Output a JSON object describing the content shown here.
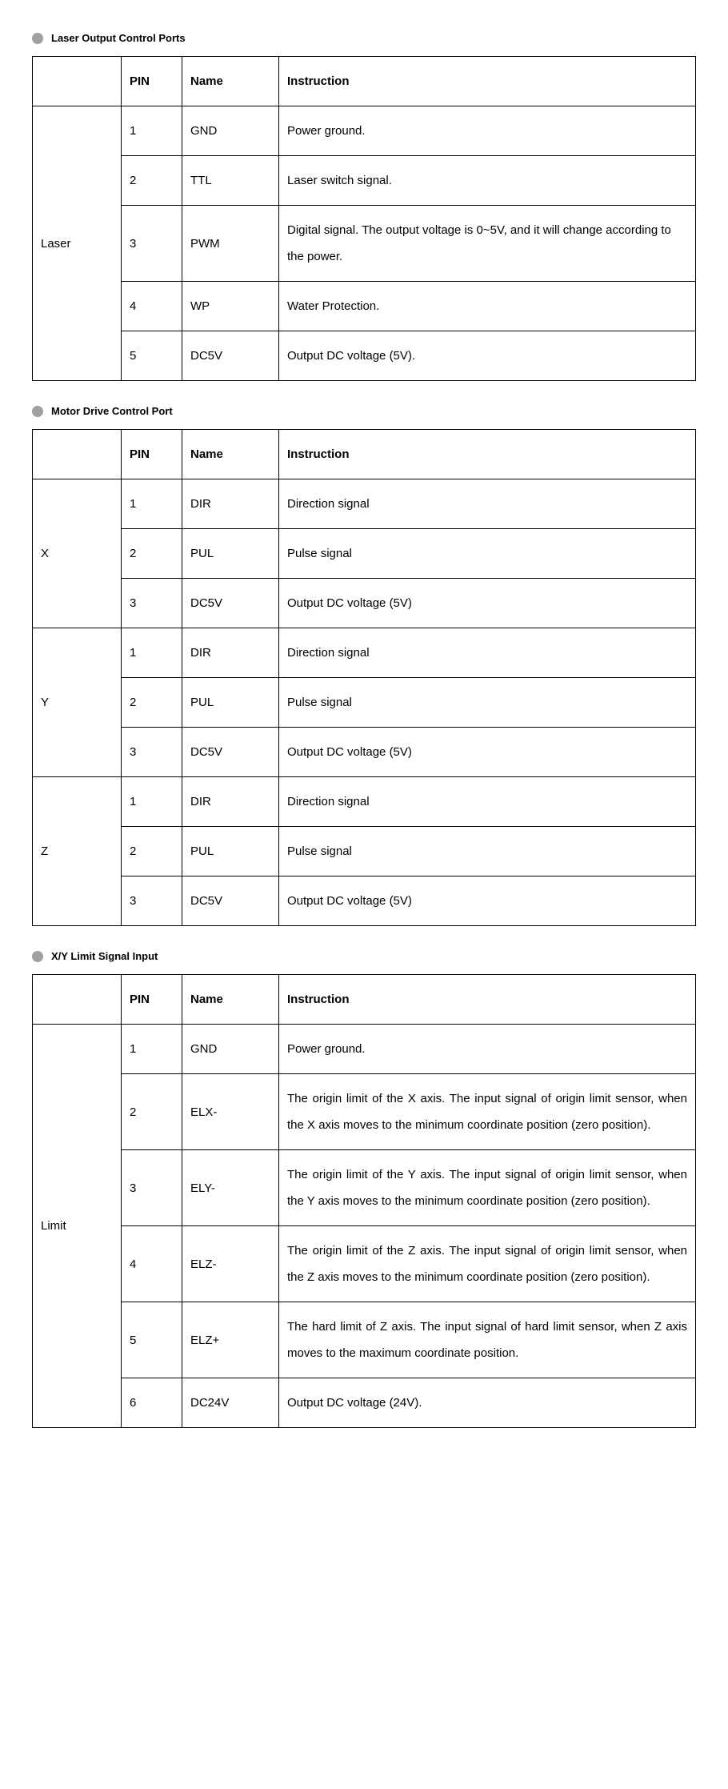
{
  "sections": [
    {
      "title": "Laser Output Control Ports",
      "headers": [
        "",
        "PIN",
        "Name",
        "Instruction"
      ],
      "groups": [
        {
          "label": "Laser",
          "rows": [
            {
              "pin": "1",
              "name": "GND",
              "instruction": "Power ground."
            },
            {
              "pin": "2",
              "name": "TTL",
              "instruction": "Laser switch signal."
            },
            {
              "pin": "3",
              "name": "PWM",
              "instruction": "Digital signal. The output voltage is 0~5V, and it will change according to the power."
            },
            {
              "pin": "4",
              "name": "WP",
              "instruction": "Water Protection."
            },
            {
              "pin": "5",
              "name": "DC5V",
              "instruction": "Output DC voltage (5V)."
            }
          ]
        }
      ]
    },
    {
      "title": "Motor Drive Control Port",
      "headers": [
        "",
        "PIN",
        "Name",
        "Instruction"
      ],
      "groups": [
        {
          "label": "X",
          "rows": [
            {
              "pin": "1",
              "name": "DIR",
              "instruction": "Direction signal"
            },
            {
              "pin": "2",
              "name": "PUL",
              "instruction": "Pulse signal"
            },
            {
              "pin": "3",
              "name": "DC5V",
              "instruction": "Output DC voltage (5V)"
            }
          ]
        },
        {
          "label": "Y",
          "rows": [
            {
              "pin": "1",
              "name": "DIR",
              "instruction": "Direction signal"
            },
            {
              "pin": "2",
              "name": "PUL",
              "instruction": "Pulse signal"
            },
            {
              "pin": "3",
              "name": "DC5V",
              "instruction": "Output DC voltage (5V)"
            }
          ]
        },
        {
          "label": "Z",
          "rows": [
            {
              "pin": "1",
              "name": "DIR",
              "instruction": "Direction signal"
            },
            {
              "pin": "2",
              "name": "PUL",
              "instruction": "Pulse signal"
            },
            {
              "pin": "3",
              "name": "DC5V",
              "instruction": "Output DC voltage (5V)"
            }
          ]
        }
      ]
    },
    {
      "title": "X/Y Limit Signal Input",
      "headers": [
        "",
        "PIN",
        "Name",
        "Instruction"
      ],
      "groups": [
        {
          "label": "Limit",
          "rows": [
            {
              "pin": "1",
              "name": "GND",
              "instruction": "Power ground."
            },
            {
              "pin": "2",
              "name": "ELX-",
              "instruction": "The origin limit of the X axis. The input signal of origin limit sensor, when the X axis moves to the minimum coordinate position (zero position).",
              "justify": true
            },
            {
              "pin": "3",
              "name": "ELY-",
              "instruction": "The origin limit of the Y axis. The input signal of origin limit sensor, when the Y axis moves to the minimum coordinate position (zero position).",
              "justify": true
            },
            {
              "pin": "4",
              "name": "ELZ-",
              "instruction": "The origin limit of the Z axis. The input signal of origin limit sensor, when the Z axis moves to the minimum coordinate position (zero position).",
              "justify": true
            },
            {
              "pin": "5",
              "name": "ELZ+",
              "instruction": "The hard limit of Z axis. The input signal of hard limit sensor, when Z axis moves to the maximum coordinate position.",
              "justify": true
            },
            {
              "pin": "6",
              "name": "DC24V",
              "instruction": "Output DC voltage (24V)."
            }
          ]
        }
      ]
    }
  ],
  "style": {
    "bullet_color": "#a0a0a0",
    "border_color": "#000000",
    "background_color": "#ffffff",
    "text_color": "#000000",
    "title_fontsize": 13,
    "cell_fontsize": 15,
    "line_height": 2.2,
    "col_widths": {
      "group": 90,
      "pin": 55,
      "name": 100
    }
  }
}
